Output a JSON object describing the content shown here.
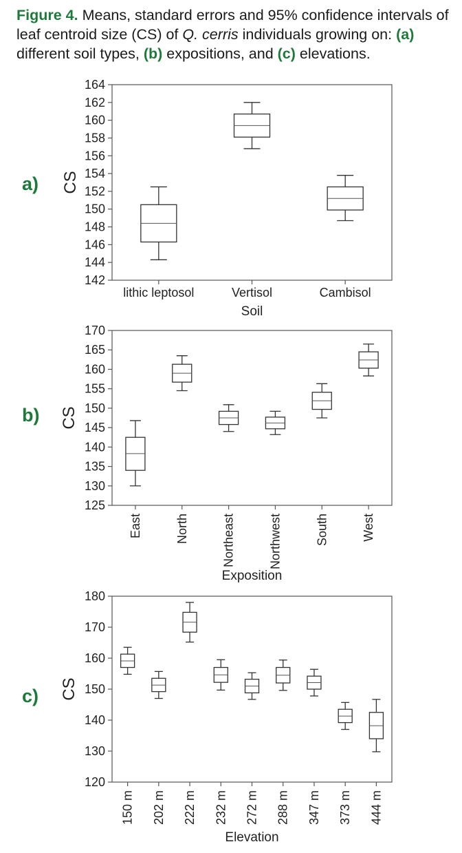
{
  "caption": {
    "figure_label": "Figure 4.",
    "pre_a": " Means, standard errors and 95% confidence intervals of leaf centroid size (CS) of ",
    "species": "Q. cerris",
    "pre_a2": " individuals growing on: ",
    "ref_a": "(a)",
    "text_a": " different soil types, ",
    "ref_b": "(b)",
    "text_b": " expositions, and ",
    "ref_c": "(c)",
    "text_c": " elevations."
  },
  "chart_data": [
    {
      "panel": "a)",
      "type": "box",
      "xlabel": "Soil",
      "ylabel": "CS",
      "ylim": [
        142,
        164
      ],
      "yticks": [
        142,
        144,
        146,
        148,
        150,
        152,
        154,
        156,
        158,
        160,
        162,
        164
      ],
      "grid": false,
      "categories": [
        "lithic leptosol",
        "Vertisol",
        "Cambisol"
      ],
      "boxes": [
        {
          "category": "lithic leptosol",
          "whisker_low": 144.3,
          "box_low": 146.3,
          "mean": 148.4,
          "box_high": 150.5,
          "whisker_high": 152.5
        },
        {
          "category": "Vertisol",
          "whisker_low": 156.8,
          "box_low": 158.1,
          "mean": 159.4,
          "box_high": 160.7,
          "whisker_high": 162.0
        },
        {
          "category": "Cambisol",
          "whisker_low": 148.7,
          "box_low": 149.9,
          "mean": 151.2,
          "box_high": 152.5,
          "whisker_high": 153.8
        }
      ]
    },
    {
      "panel": "b)",
      "type": "box",
      "xlabel": "Exposition",
      "ylabel": "CS",
      "ylim": [
        125,
        170
      ],
      "yticks": [
        125,
        130,
        135,
        140,
        145,
        150,
        155,
        160,
        165,
        170
      ],
      "grid": false,
      "categories": [
        "East",
        "North",
        "Northeast",
        "Northwest",
        "South",
        "West"
      ],
      "boxes": [
        {
          "category": "East",
          "whisker_low": 130.0,
          "box_low": 134.0,
          "mean": 138.3,
          "box_high": 142.5,
          "whisker_high": 146.8
        },
        {
          "category": "North",
          "whisker_low": 154.5,
          "box_low": 156.7,
          "mean": 159.0,
          "box_high": 161.3,
          "whisker_high": 163.5
        },
        {
          "category": "Northeast",
          "whisker_low": 144.0,
          "box_low": 145.8,
          "mean": 147.5,
          "box_high": 149.2,
          "whisker_high": 150.9
        },
        {
          "category": "Northwest",
          "whisker_low": 143.2,
          "box_low": 144.7,
          "mean": 146.2,
          "box_high": 147.7,
          "whisker_high": 149.2
        },
        {
          "category": "South",
          "whisker_low": 147.5,
          "box_low": 149.7,
          "mean": 151.9,
          "box_high": 154.1,
          "whisker_high": 156.3
        },
        {
          "category": "West",
          "whisker_low": 158.3,
          "box_low": 160.3,
          "mean": 162.4,
          "box_high": 164.5,
          "whisker_high": 166.5
        }
      ]
    },
    {
      "panel": "c)",
      "type": "box",
      "xlabel": "Elevation",
      "ylabel": "CS",
      "ylim": [
        120,
        180
      ],
      "yticks": [
        120,
        130,
        140,
        150,
        160,
        170,
        180
      ],
      "grid": false,
      "categories": [
        "150 m",
        "202 m",
        "222 m",
        "232 m",
        "272 m",
        "288 m",
        "347 m",
        "373 m",
        "444 m"
      ],
      "boxes": [
        {
          "category": "150 m",
          "whisker_low": 154.8,
          "box_low": 157.0,
          "mean": 159.1,
          "box_high": 161.3,
          "whisker_high": 163.5
        },
        {
          "category": "202 m",
          "whisker_low": 147.0,
          "box_low": 149.2,
          "mean": 151.3,
          "box_high": 153.5,
          "whisker_high": 155.7
        },
        {
          "category": "222 m",
          "whisker_low": 165.2,
          "box_low": 168.4,
          "mean": 171.6,
          "box_high": 174.8,
          "whisker_high": 178.0
        },
        {
          "category": "232 m",
          "whisker_low": 149.7,
          "box_low": 152.2,
          "mean": 154.6,
          "box_high": 157.0,
          "whisker_high": 159.5
        },
        {
          "category": "272 m",
          "whisker_low": 146.7,
          "box_low": 148.8,
          "mean": 151.0,
          "box_high": 153.2,
          "whisker_high": 155.3
        },
        {
          "category": "288 m",
          "whisker_low": 149.6,
          "box_low": 152.0,
          "mean": 154.5,
          "box_high": 157.0,
          "whisker_high": 159.4
        },
        {
          "category": "347 m",
          "whisker_low": 147.8,
          "box_low": 150.0,
          "mean": 152.1,
          "box_high": 154.2,
          "whisker_high": 156.4
        },
        {
          "category": "373 m",
          "whisker_low": 137.0,
          "box_low": 139.2,
          "mean": 141.3,
          "box_high": 143.5,
          "whisker_high": 145.7
        },
        {
          "category": "444 m",
          "whisker_low": 129.8,
          "box_low": 134.0,
          "mean": 138.2,
          "box_high": 142.5,
          "whisker_high": 146.7
        }
      ]
    }
  ]
}
